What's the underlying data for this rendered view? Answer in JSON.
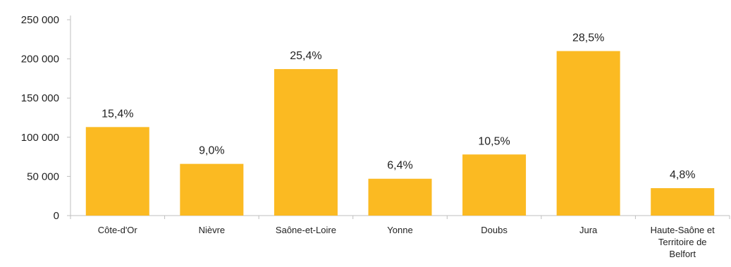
{
  "chart_data": {
    "type": "bar",
    "categories": [
      [
        "Côte-d'Or"
      ],
      [
        "Nièvre"
      ],
      [
        "Saône-et-Loire"
      ],
      [
        "Yonne"
      ],
      [
        "Doubs"
      ],
      [
        "Jura"
      ],
      [
        "Haute-Saône et",
        "Territoire de",
        "Belfort"
      ]
    ],
    "values": [
      113000,
      66000,
      187000,
      47000,
      78000,
      210000,
      35000
    ],
    "data_labels": [
      "15,4%",
      "9,0%",
      "25,4%",
      "6,4%",
      "10,5%",
      "28,5%",
      "4,8%"
    ],
    "y_ticks": [
      0,
      50000,
      100000,
      150000,
      200000,
      250000
    ],
    "y_tick_labels": [
      "0",
      "50 000",
      "100 000",
      "150 000",
      "200 000",
      "250 000"
    ],
    "ylim": [
      0,
      250000
    ],
    "grid": false,
    "legend": "none",
    "title": "",
    "xlabel": "",
    "ylabel": "",
    "colors": {
      "bar": "#FBBA22",
      "axis": "#bfbfbf",
      "text": "#222222"
    }
  }
}
